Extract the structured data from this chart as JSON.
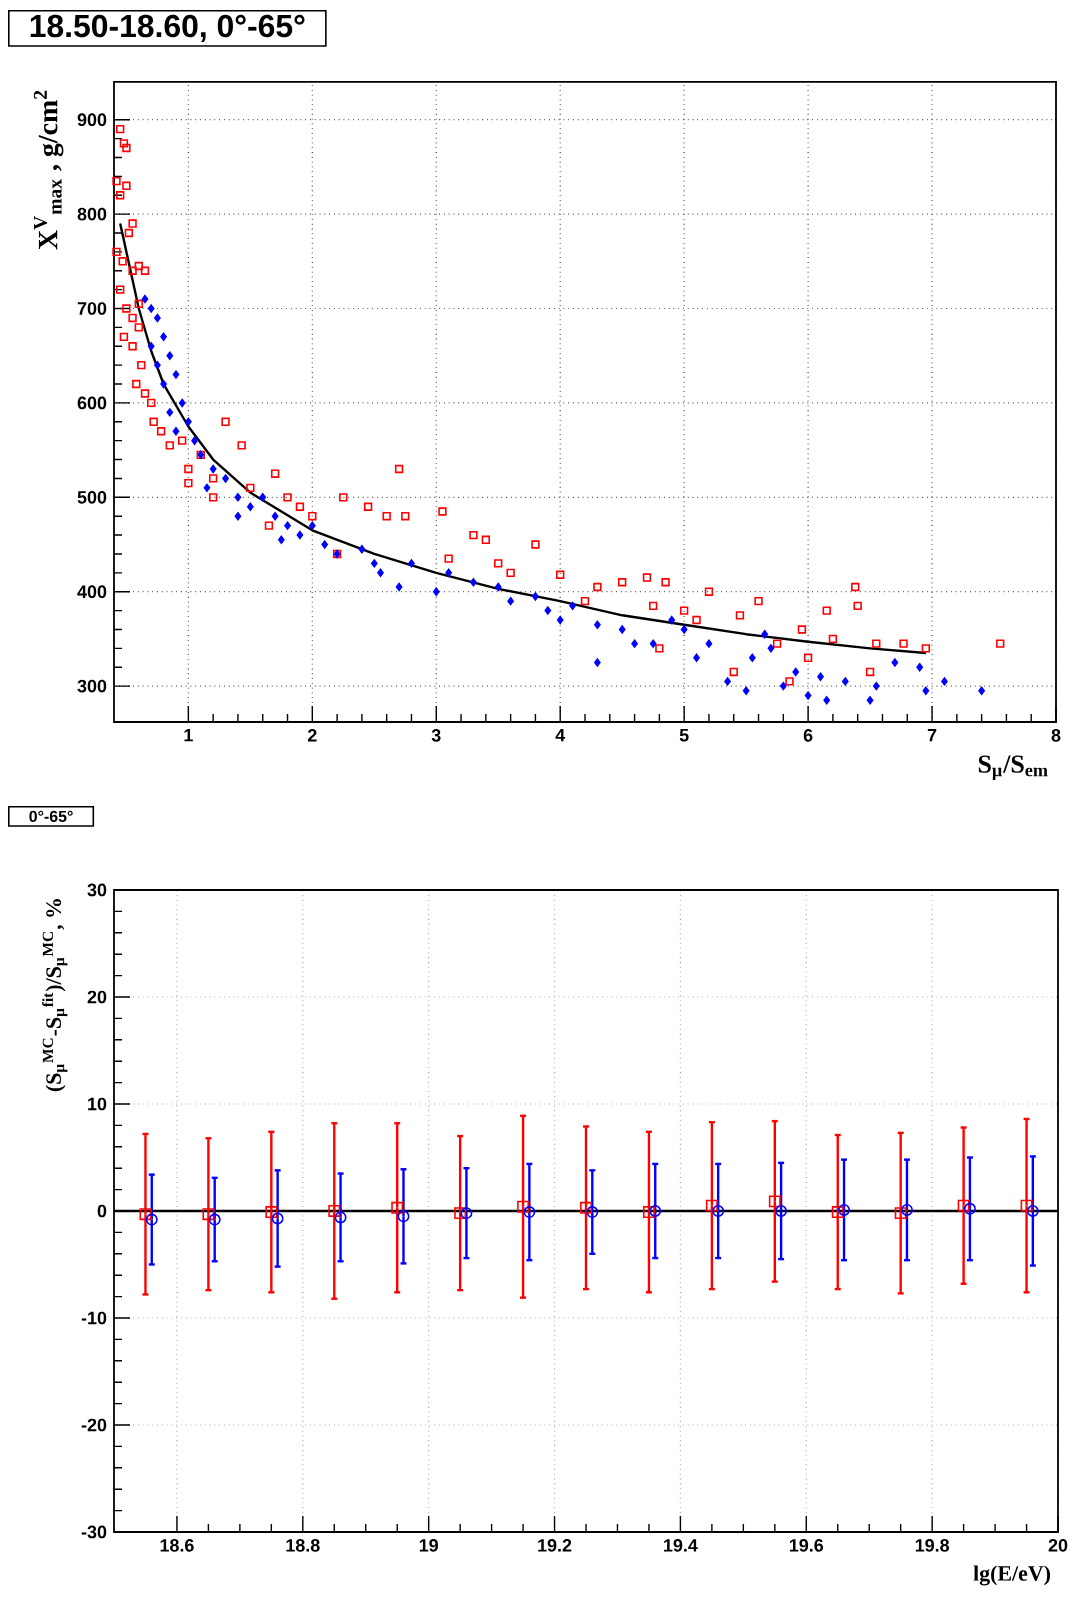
{
  "chart_data": [
    {
      "type": "scatter",
      "title": "18.50-18.60, 0°-65°",
      "xlabel": "S$_{μ}$/S$_{em}$",
      "ylabel": "X$^{V}$$_{max}$ , g/cm$^{2}$",
      "xlim": [
        0.4,
        8
      ],
      "ylim": [
        262,
        940
      ],
      "xticks": [
        1,
        2,
        3,
        4,
        5,
        6,
        7,
        8
      ],
      "yticks": [
        300,
        400,
        500,
        600,
        700,
        800,
        900
      ],
      "grid": true,
      "series": [
        {
          "marker": "square",
          "color": "#ff0000",
          "x": [
            0.45,
            0.48,
            0.5,
            0.42,
            0.45,
            0.5,
            0.55,
            0.52,
            0.42,
            0.47,
            0.55,
            0.6,
            0.65,
            0.45,
            0.5,
            0.55,
            0.6,
            0.48,
            0.55,
            0.6,
            0.62,
            0.58,
            0.65,
            0.7,
            0.72,
            0.78,
            0.85,
            0.95,
            1.0,
            1.0,
            1.3,
            1.43,
            1.1,
            1.2,
            1.5,
            1.7,
            1.8,
            1.65,
            1.9,
            2.0,
            2.25,
            2.7,
            2.45,
            2.6,
            2.75,
            3.05,
            3.3,
            3.4,
            3.8,
            3.6,
            4.0,
            4.2,
            4.3,
            4.5,
            4.7,
            4.85,
            4.75,
            5.0,
            5.2,
            5.1,
            5.45,
            5.6,
            5.75,
            5.95,
            6.15,
            6.2,
            6.38,
            6.4,
            6.55,
            6.77,
            6.95,
            7.55,
            5.4,
            5.85,
            6.5,
            6.0,
            4.8,
            2.2,
            3.1,
            3.5,
            1.2
          ],
          "values": [
            890,
            875,
            870,
            835,
            820,
            830,
            790,
            780,
            760,
            750,
            740,
            745,
            740,
            720,
            700,
            690,
            705,
            670,
            660,
            680,
            640,
            620,
            610,
            600,
            580,
            570,
            555,
            560,
            530,
            515,
            580,
            555,
            545,
            520,
            510,
            525,
            500,
            470,
            490,
            480,
            500,
            530,
            490,
            480,
            480,
            485,
            460,
            455,
            450,
            420,
            418,
            390,
            405,
            410,
            415,
            410,
            385,
            380,
            400,
            370,
            375,
            390,
            345,
            360,
            380,
            350,
            405,
            385,
            345,
            345,
            340,
            345,
            315,
            305,
            315,
            330,
            340,
            440,
            435,
            430,
            500
          ]
        },
        {
          "marker": "diamond",
          "color": "#0000ff",
          "x": [
            0.65,
            0.7,
            0.75,
            0.8,
            0.85,
            0.7,
            0.75,
            0.9,
            0.8,
            0.95,
            0.85,
            0.9,
            1.0,
            1.05,
            1.1,
            1.2,
            1.15,
            1.3,
            1.4,
            1.5,
            1.4,
            1.6,
            1.7,
            1.8,
            1.75,
            1.9,
            2.0,
            2.1,
            2.2,
            2.4,
            2.5,
            2.55,
            2.7,
            2.8,
            3.0,
            3.1,
            3.3,
            3.5,
            3.6,
            3.8,
            3.9,
            4.0,
            4.1,
            4.3,
            4.3,
            4.5,
            4.6,
            4.75,
            4.9,
            5.0,
            5.1,
            5.2,
            5.35,
            5.5,
            5.55,
            5.7,
            5.8,
            5.9,
            6.0,
            6.1,
            6.15,
            6.3,
            6.5,
            6.55,
            6.7,
            6.9,
            6.95,
            7.1,
            7.4,
            5.65
          ],
          "values": [
            710,
            700,
            690,
            670,
            650,
            660,
            640,
            630,
            620,
            600,
            590,
            570,
            580,
            560,
            545,
            530,
            510,
            520,
            500,
            490,
            480,
            500,
            480,
            470,
            455,
            460,
            470,
            450,
            440,
            445,
            430,
            420,
            405,
            430,
            400,
            420,
            410,
            405,
            390,
            395,
            380,
            370,
            385,
            325,
            365,
            360,
            345,
            345,
            370,
            360,
            330,
            345,
            305,
            295,
            330,
            340,
            300,
            315,
            290,
            310,
            285,
            305,
            285,
            300,
            325,
            320,
            295,
            305,
            295,
            355
          ]
        },
        {
          "type": "line",
          "marker": "none",
          "color": "#000000",
          "x": [
            0.45,
            0.5,
            0.6,
            0.7,
            0.8,
            1.0,
            1.2,
            1.5,
            2.0,
            2.5,
            3.0,
            3.5,
            4.0,
            4.5,
            5.0,
            5.5,
            6.0,
            6.5,
            6.95
          ],
          "values": [
            790,
            760,
            700,
            655,
            620,
            575,
            540,
            505,
            465,
            440,
            420,
            403,
            390,
            375,
            365,
            355,
            347,
            340,
            335
          ]
        }
      ]
    },
    {
      "type": "scatter",
      "title": "0°-65°",
      "xlabel": "lg(E/eV)",
      "ylabel": "(S$_{μ}$$^{MC}$-S$_{μ}$$^{fit}$)/S$_{μ}$$^{MC}$, %",
      "xlim": [
        18.5,
        20
      ],
      "ylim": [
        -30,
        30
      ],
      "xticks": [
        18.6,
        18.8,
        19,
        19.2,
        19.4,
        19.6,
        19.8,
        20
      ],
      "yticks": [
        -30,
        -20,
        -10,
        0,
        10,
        20,
        30
      ],
      "grid": true,
      "ref_lines": [
        {
          "axis": "y",
          "value": 0,
          "color": "#000000"
        }
      ],
      "series": [
        {
          "marker": "square",
          "color": "#ff0000",
          "x": [
            18.55,
            18.65,
            18.75,
            18.85,
            18.95,
            19.05,
            19.15,
            19.25,
            19.35,
            19.45,
            19.55,
            19.65,
            19.75,
            19.85,
            19.95
          ],
          "values": [
            -0.3,
            -0.3,
            -0.1,
            0,
            0.3,
            -0.2,
            0.4,
            0.3,
            -0.1,
            0.5,
            0.9,
            -0.1,
            -0.2,
            0.5,
            0.5
          ],
          "errors": [
            7.5,
            7.1,
            7.5,
            8.2,
            7.9,
            7.2,
            8.5,
            7.6,
            7.5,
            7.8,
            7.5,
            7.2,
            7.5,
            7.3,
            8.1
          ]
        },
        {
          "marker": "circle",
          "color": "#0000ff",
          "x": [
            18.56,
            18.66,
            18.76,
            18.86,
            18.96,
            19.06,
            19.16,
            19.26,
            19.36,
            19.46,
            19.56,
            19.66,
            19.76,
            19.86,
            19.96
          ],
          "values": [
            -0.8,
            -0.8,
            -0.7,
            -0.6,
            -0.5,
            -0.2,
            -0.1,
            -0.1,
            0,
            0,
            0,
            0.1,
            0.1,
            0.2,
            0
          ],
          "errors": [
            4.2,
            3.9,
            4.5,
            4.1,
            4.4,
            4.2,
            4.5,
            3.9,
            4.4,
            4.4,
            4.5,
            4.7,
            4.7,
            4.8,
            5.1
          ]
        }
      ]
    }
  ]
}
